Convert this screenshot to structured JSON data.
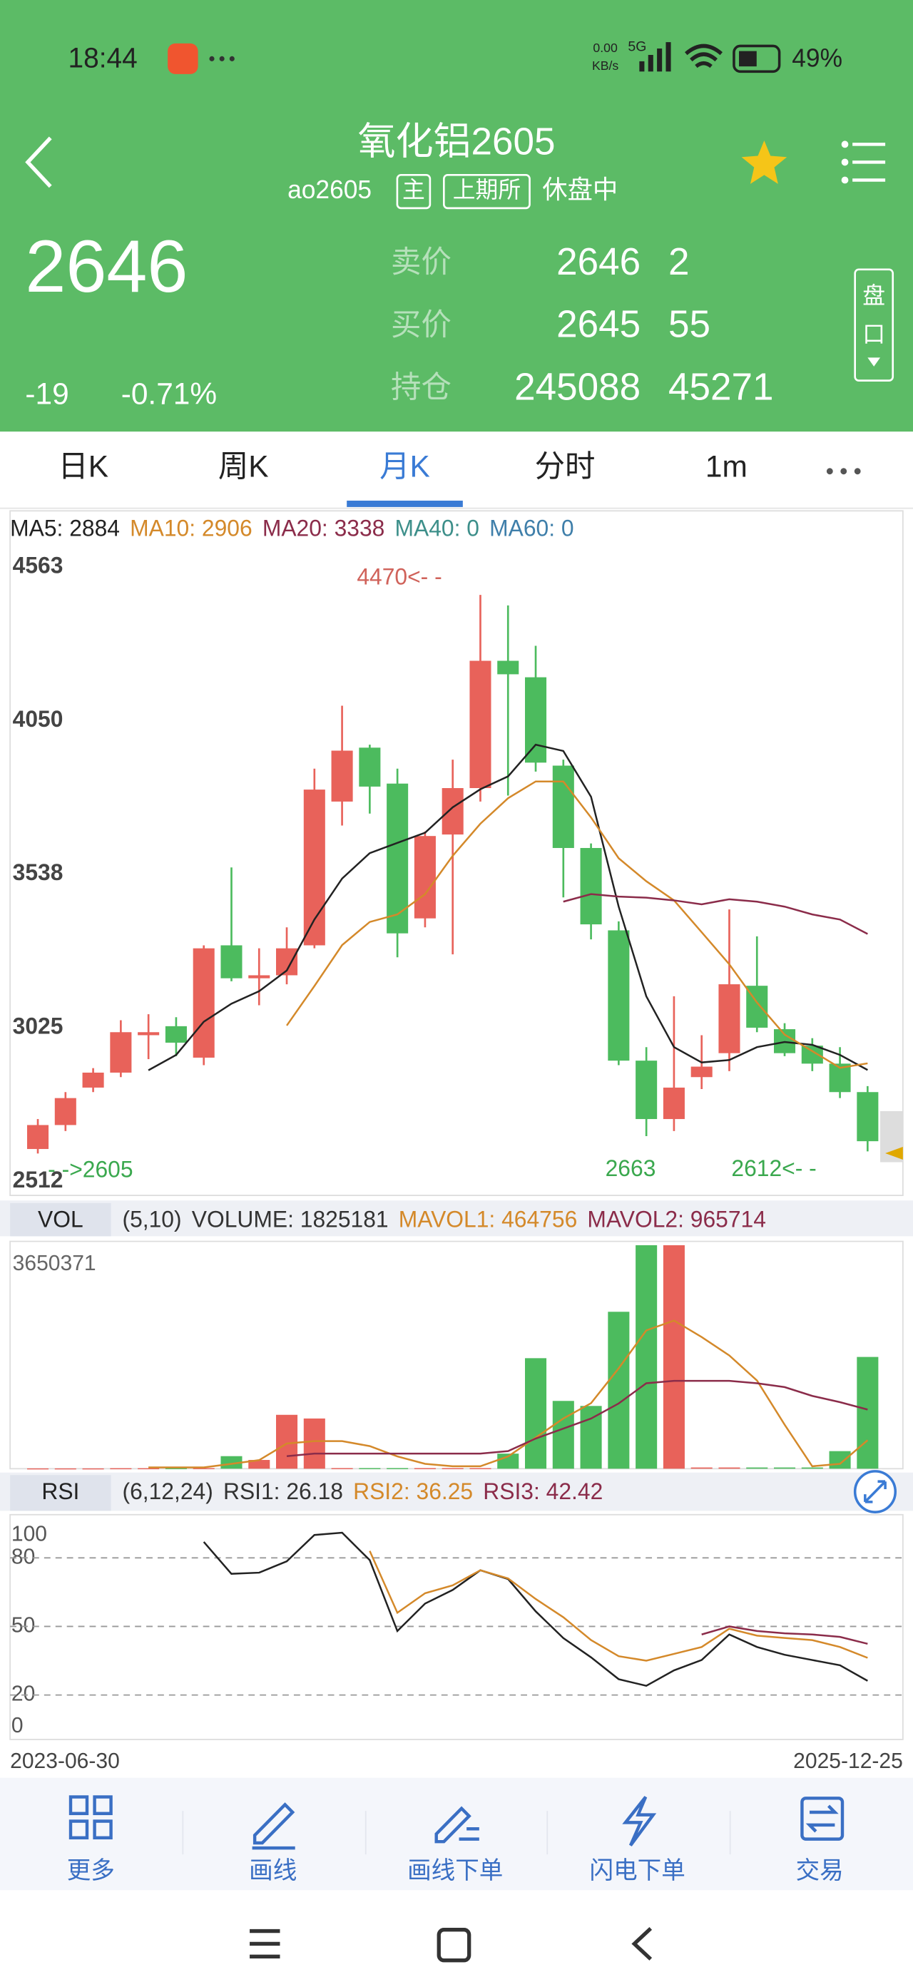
{
  "status_bar": {
    "time": "18:44",
    "speed_value": "0.00",
    "speed_unit": "KB/s",
    "network": "5G",
    "battery": "49%"
  },
  "header": {
    "title": "氧化铝2605",
    "code": "ao2605",
    "tags": [
      "主",
      "上期所"
    ],
    "status": "休盘中",
    "side_button": [
      "盘",
      "口"
    ]
  },
  "quote": {
    "price": 2646,
    "change": "-19",
    "change_pct": "-0.71%",
    "book": [
      {
        "label": "卖价",
        "price": 2646,
        "qty": 2
      },
      {
        "label": "买价",
        "price": 2645,
        "qty": 55
      },
      {
        "label": "持仓",
        "price": 245088,
        "qty": 45271
      }
    ]
  },
  "tabs": {
    "items": [
      "日K",
      "周K",
      "月K",
      "分时",
      "1m"
    ],
    "active": 2
  },
  "chart_data": [
    {
      "type": "candlestick",
      "legend": [
        {
          "text": "MA5: 2884",
          "color": "#222222"
        },
        {
          "text": "MA10: 2906",
          "color": "#d4892a"
        },
        {
          "text": "MA20: 3338",
          "color": "#8b2c4a"
        },
        {
          "text": "MA40: 0",
          "color": "#3d8f8a"
        },
        {
          "text": "MA60: 0",
          "color": "#3f7faa"
        }
      ],
      "up_color": "#e8625a",
      "down_color": "#4cbb5e",
      "open": [
        2620,
        2700,
        2825,
        2875,
        3000,
        3030,
        2925,
        3300,
        3190,
        3200,
        3300,
        3780,
        3960,
        3840,
        3390,
        3670,
        3825,
        4250,
        4195,
        3900,
        3625,
        3350,
        2915,
        2720,
        2860,
        2940,
        3165,
        3020,
        2965,
        2905,
        2810
      ],
      "high": [
        2720,
        2810,
        2890,
        3050,
        3070,
        3060,
        3300,
        3560,
        3290,
        3360,
        3890,
        4100,
        3970,
        3890,
        3680,
        3920,
        4470,
        4435,
        4300,
        3920,
        3640,
        3380,
        2960,
        3130,
        3000,
        3420,
        3330,
        3040,
        2990,
        2960,
        2830
      ],
      "low": [
        2605,
        2680,
        2810,
        2860,
        2920,
        2930,
        2900,
        3180,
        3100,
        3170,
        3290,
        3700,
        3740,
        3260,
        3360,
        3270,
        3780,
        3800,
        3880,
        3460,
        3320,
        2900,
        2663,
        2680,
        2820,
        2880,
        3010,
        2930,
        2880,
        2790,
        2612
      ],
      "close": [
        2700,
        2790,
        2875,
        3010,
        3010,
        2975,
        3290,
        3190,
        3200,
        3290,
        3820,
        3950,
        3830,
        3340,
        3665,
        3825,
        4250,
        4205,
        3910,
        3625,
        3370,
        2915,
        2720,
        2825,
        2895,
        3170,
        3025,
        2940,
        2905,
        2810,
        2646
      ],
      "series": [
        {
          "color": "#222222",
          "values": [
            null,
            null,
            null,
            null,
            2883,
            2934,
            3045,
            3105,
            3147,
            3216,
            3386,
            3523,
            3608,
            3642,
            3676,
            3761,
            3821,
            3864,
            3970,
            3949,
            3796,
            3429,
            3130,
            2960,
            2909,
            2917,
            2960,
            2977,
            2968,
            2934,
            2884
          ]
        },
        {
          "color": "#d4892a",
          "values": [
            null,
            null,
            null,
            null,
            null,
            null,
            null,
            null,
            null,
            3032,
            3164,
            3301,
            3378,
            3403,
            3471,
            3599,
            3706,
            3791,
            3847,
            3847,
            3727,
            3591,
            3514,
            3450,
            3344,
            3237,
            3109,
            3002,
            2947,
            2891,
            2906
          ]
        },
        {
          "color": "#8b2c4a",
          "values": [
            null,
            null,
            null,
            null,
            null,
            null,
            null,
            null,
            null,
            null,
            null,
            null,
            null,
            null,
            null,
            null,
            null,
            null,
            null,
            3446,
            3471,
            3463,
            3459,
            3450,
            3437,
            3454,
            3446,
            3429,
            3403,
            3386,
            3338
          ]
        }
      ],
      "ylim": [
        2512,
        4563
      ],
      "yticks": [
        4563,
        4050,
        3538,
        3025,
        2512
      ],
      "annotations": [
        "4470<- -",
        "2663",
        "2612<- -",
        "- ->2605"
      ]
    },
    {
      "type": "bar",
      "title": "VOL",
      "params": "(5,10)",
      "legend": [
        {
          "text": "VOLUME: 1825181",
          "color": "#333333"
        },
        {
          "text": "MAVOL1: 464756",
          "color": "#d4892a"
        },
        {
          "text": "MAVOL2: 965714",
          "color": "#8b2c4a"
        }
      ],
      "values": [
        5000,
        5000,
        5000,
        8000,
        8000,
        10000,
        10000,
        205000,
        143000,
        880000,
        820000,
        10000,
        10000,
        10000,
        10000,
        10000,
        10000,
        246000,
        1805000,
        1107000,
        1025000,
        2563000,
        3650371,
        3650000,
        20000,
        20000,
        20000,
        20000,
        20000,
        287000,
        1825181
      ],
      "series": [
        {
          "color": "#d4892a",
          "values": [
            null,
            null,
            null,
            null,
            20000,
            20000,
            20000,
            80000,
            140000,
            410000,
            450000,
            450000,
            370000,
            200000,
            80000,
            40000,
            40000,
            200000,
            510000,
            820000,
            1070000,
            1640000,
            2260000,
            2420000,
            2150000,
            1850000,
            1440000,
            720000,
            40000,
            80000,
            464756
          ]
        },
        {
          "color": "#8b2c4a",
          "values": [
            null,
            null,
            null,
            null,
            null,
            null,
            null,
            null,
            null,
            205000,
            246000,
            246000,
            246000,
            246000,
            246000,
            246000,
            246000,
            287000,
            492000,
            656000,
            820000,
            1066000,
            1395000,
            1436000,
            1436000,
            1436000,
            1395000,
            1333000,
            1190000,
            1087000,
            965714
          ]
        }
      ],
      "ylim": [
        0,
        3650371
      ],
      "yticks": [
        3650371
      ]
    },
    {
      "type": "line",
      "title": "RSI",
      "params": "(6,12,24)",
      "legend": [
        {
          "text": "RSI1: 26.18",
          "color": "#333333"
        },
        {
          "text": "RSI2: 36.25",
          "color": "#d4892a"
        },
        {
          "text": "RSI3: 42.42",
          "color": "#8b2c4a"
        }
      ],
      "series": [
        {
          "color": "#222222",
          "values": [
            null,
            null,
            null,
            null,
            null,
            null,
            87,
            73,
            73.5,
            78.5,
            90,
            91,
            79,
            48,
            60,
            66,
            74.6,
            70.7,
            56.6,
            44.9,
            36.5,
            26.9,
            24,
            30.8,
            35.3,
            46.5,
            41,
            37.6,
            35.3,
            33,
            26.18
          ]
        },
        {
          "color": "#d4892a",
          "values": [
            null,
            null,
            null,
            null,
            null,
            null,
            null,
            null,
            null,
            null,
            null,
            null,
            83,
            56,
            64.5,
            68,
            74.6,
            71,
            62,
            54,
            44,
            37,
            35,
            38,
            41,
            49,
            46,
            45,
            44,
            41,
            36.25
          ]
        },
        {
          "color": "#8b2c4a",
          "values": [
            null,
            null,
            null,
            null,
            null,
            null,
            null,
            null,
            null,
            null,
            null,
            null,
            null,
            null,
            null,
            null,
            null,
            null,
            null,
            null,
            null,
            null,
            null,
            null,
            46.5,
            50,
            48,
            47,
            46.5,
            45.4,
            42.42
          ]
        }
      ],
      "ylim": [
        0,
        100
      ],
      "yticks": [
        0,
        20,
        50,
        80,
        100
      ],
      "grid": true
    }
  ],
  "date_range": [
    "2023-06-30",
    "2025-12-25"
  ],
  "toolbar": [
    "更多",
    "画线",
    "画线下单",
    "闪电下单",
    "交易"
  ]
}
